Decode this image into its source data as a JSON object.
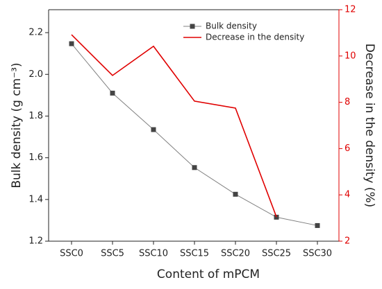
{
  "chart_data": {
    "type": "line",
    "xlabel": "Content of mPCM",
    "ylabel": "Bulk density (g cm⁻³)",
    "y2label": "Decrease in the density (%)",
    "categories": [
      "SSC0",
      "SSC5",
      "SSC10",
      "SSC15",
      "SSC20",
      "SSC25",
      "SSC30"
    ],
    "series": [
      {
        "name": "Bulk density",
        "color": "#808080",
        "marker": "square",
        "values": [
          2.147,
          1.91,
          1.735,
          1.553,
          1.425,
          1.315,
          1.275
        ]
      },
      {
        "name": "Decrease in the density",
        "color": "#e00000",
        "axis": "y2",
        "values": [
          10.92,
          9.16,
          10.42,
          8.05,
          7.75,
          3.05,
          null
        ]
      }
    ],
    "ylim": [
      1.2,
      2.31
    ],
    "yticks": [
      1.2,
      1.4,
      1.6,
      1.8,
      2.0,
      2.2
    ],
    "y2lim": [
      2,
      12
    ],
    "y2ticks": [
      2,
      4,
      6,
      8,
      10,
      12
    ],
    "legend": "top"
  }
}
